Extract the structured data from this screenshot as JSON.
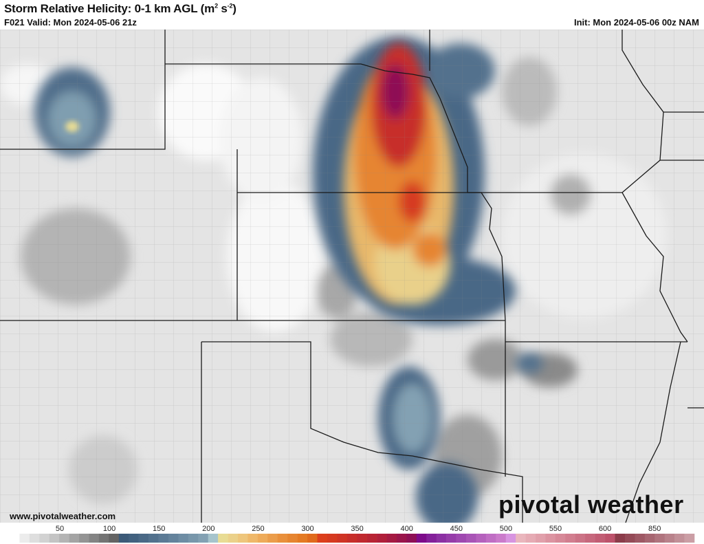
{
  "header": {
    "title": "Storm Relative Helicity: 0-1 km AGL (m",
    "title_sup1": "2",
    "title_mid": " s",
    "title_sup2": "-2",
    "title_end": ")",
    "valid": "F021 Valid: Mon 2024-05-06 21z",
    "init": "Init: Mon 2024-05-06 00z NAM"
  },
  "footer": {
    "url": "www.pivotalweather.com",
    "logo": "pivotal weather"
  },
  "colorbar": {
    "labels": [
      "50",
      "100",
      "150",
      "200",
      "250",
      "300",
      "350",
      "400",
      "450",
      "500",
      "550",
      "600",
      "850"
    ],
    "colors": [
      "#ffffff",
      "#ececec",
      "#dedede",
      "#d2d2d2",
      "#c4c4c4",
      "#b4b4b4",
      "#a4a4a4",
      "#949494",
      "#848484",
      "#747474",
      "#646464",
      "#3c5a78",
      "#42617f",
      "#4a6986",
      "#52718d",
      "#5b7a95",
      "#64839c",
      "#6e8da4",
      "#7897ab",
      "#83a1b3",
      "#a6c4cc",
      "#e8dc94",
      "#ebd18a",
      "#eec67c",
      "#efb86a",
      "#eeab5a",
      "#eb9d4b",
      "#e9903c",
      "#e68530",
      "#e47a23",
      "#e06a1c",
      "#dc3f1c",
      "#d63a20",
      "#cf3425",
      "#c72e2a",
      "#c0292f",
      "#b82434",
      "#b01f3a",
      "#a51a42",
      "#9a154b",
      "#8e1055",
      "#7d0b8a",
      "#84209a",
      "#8c30a3",
      "#963ca9",
      "#9f48b0",
      "#a954b6",
      "#b561bd",
      "#c06ec4",
      "#cb7bcb",
      "#d894e0",
      "#eab6bd",
      "#e6abb4",
      "#e1a0ab",
      "#dc94a1",
      "#d78998",
      "#d27e8f",
      "#cc7386",
      "#c7687d",
      "#c25d74",
      "#bd526b",
      "#8c3c4a",
      "#954a57",
      "#9e5864",
      "#a76671",
      "#b0747e",
      "#b9828b",
      "#c29098",
      "#cb9ea5"
    ]
  },
  "map": {
    "colors": {
      "background": "#e6e6e6",
      "border": "#1a1a1a",
      "county": "#8a8a8a"
    }
  }
}
